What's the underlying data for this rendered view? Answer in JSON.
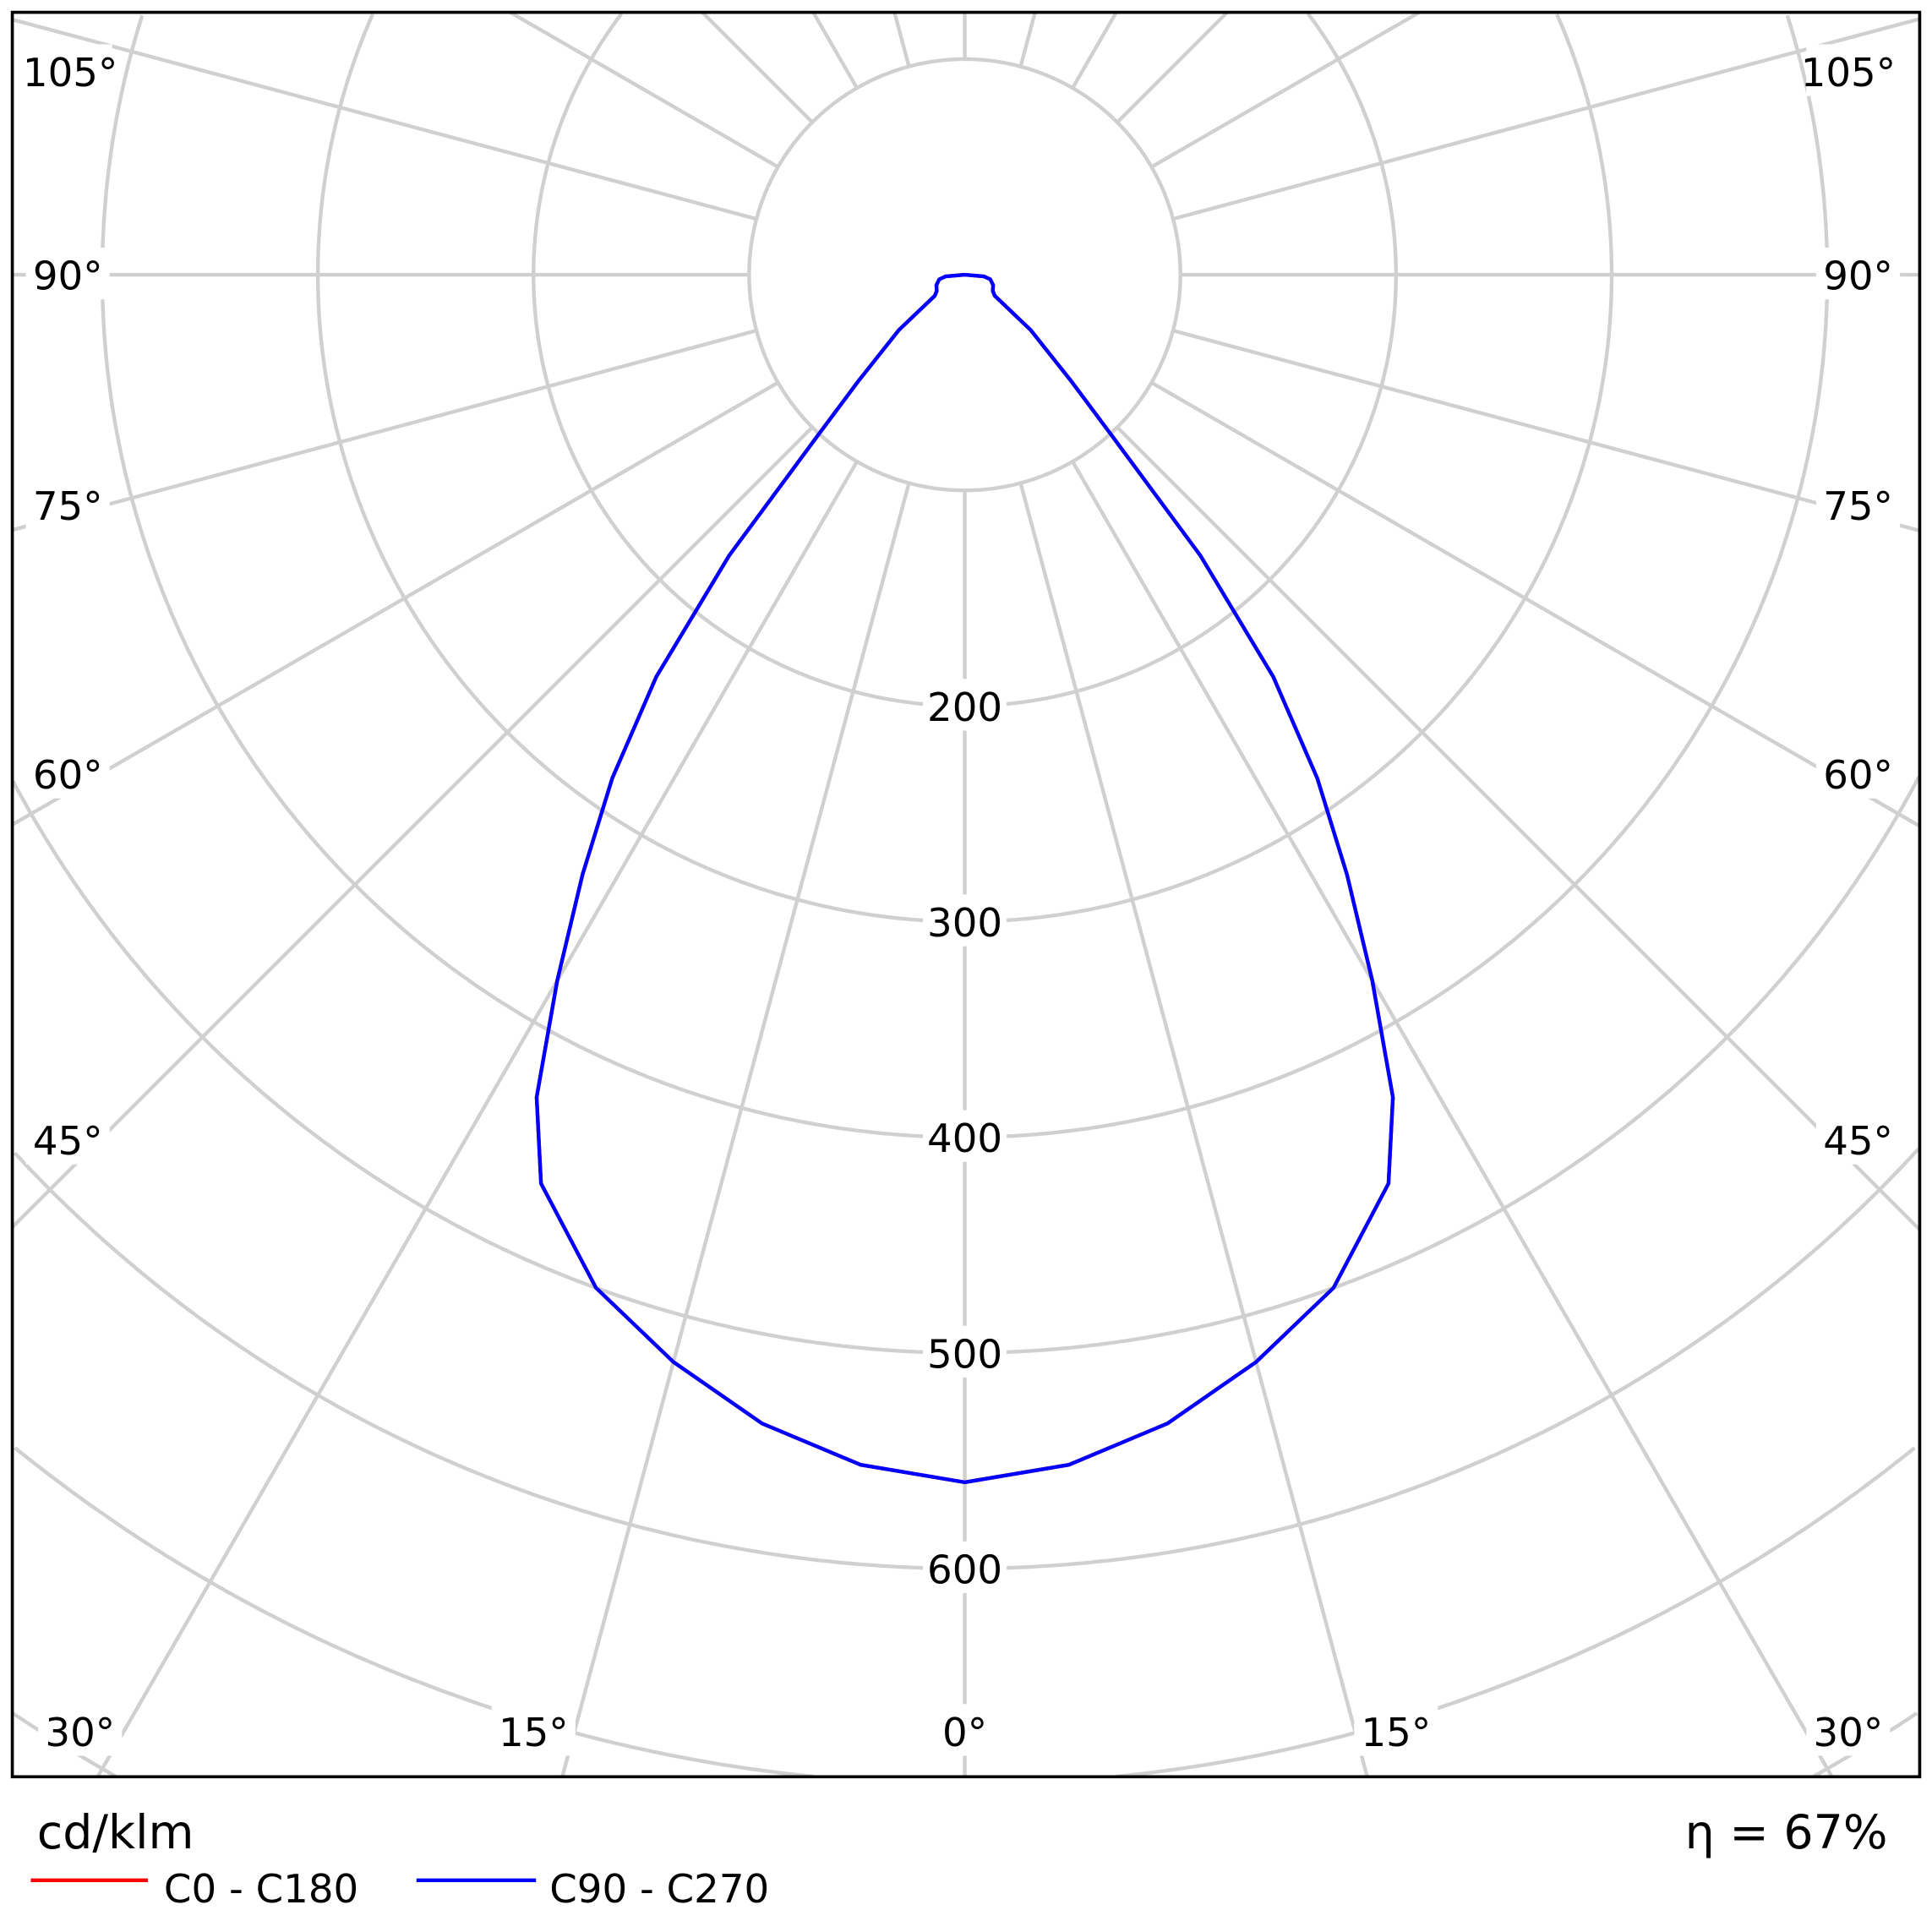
{
  "chart_data": {
    "type": "polar-line",
    "unit_label": "cd/klm",
    "efficiency_label": "η = 67%",
    "radial_ticks": [
      200,
      300,
      400,
      500,
      600
    ],
    "radial_grid_step": 100,
    "angle_grid_step_deg": 15,
    "angle_labels": {
      "left": [
        "105°",
        "90°",
        "75°",
        "60°",
        "45°",
        "30°",
        "15°"
      ],
      "bottom": "0°",
      "right": [
        "105°",
        "90°",
        "75°",
        "60°",
        "45°",
        "30°",
        "15°"
      ]
    },
    "grid": true,
    "legend_position": "bottom-left",
    "series": [
      {
        "name": "C0 - C180",
        "color": "#ff0000",
        "angles": [
          0,
          5,
          10,
          15,
          20,
          25,
          27.5,
          30,
          32.5,
          35,
          37.5,
          40,
          42.5,
          45,
          50,
          55,
          60,
          70,
          80,
          85,
          90
        ],
        "values": [
          560,
          554,
          541,
          522,
          500,
          465,
          430,
          378,
          330,
          285,
          235,
          170,
          100,
          70,
          40,
          17,
          15,
          14,
          12,
          9,
          0
        ]
      },
      {
        "name": "C90 - C270",
        "color": "#0000ff",
        "angles": [
          0,
          5,
          10,
          15,
          20,
          25,
          27.5,
          30,
          32.5,
          35,
          37.5,
          40,
          42.5,
          45,
          50,
          55,
          60,
          70,
          80,
          85,
          90
        ],
        "values": [
          560,
          554,
          541,
          522,
          500,
          465,
          430,
          378,
          330,
          285,
          235,
          170,
          100,
          70,
          40,
          17,
          15,
          14,
          12,
          9,
          0
        ]
      }
    ]
  }
}
